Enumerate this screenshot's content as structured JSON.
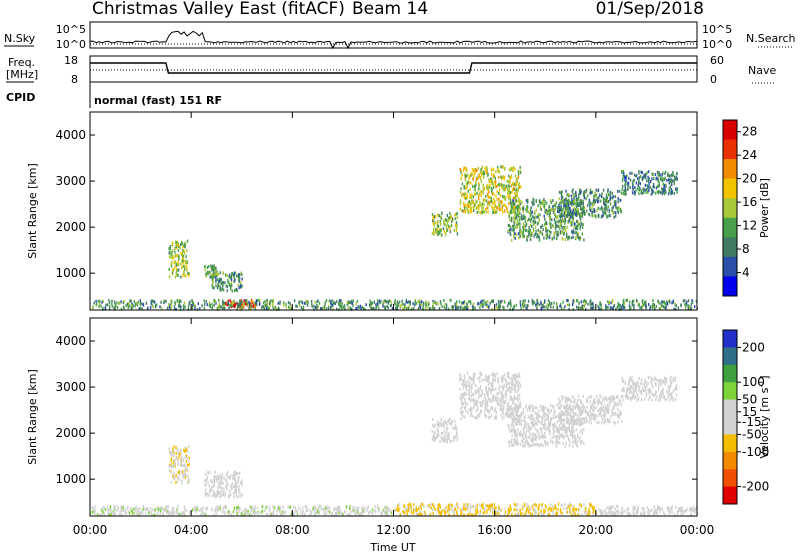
{
  "header": {
    "title": "Christmas Valley East (fitACF)",
    "beam": "Beam 14",
    "date": "01/Sep/2018"
  },
  "strip": {
    "nsky_label": "N.Sky",
    "nsearch_label": "N.Search",
    "freq_label": "Freq.",
    "freq_unit": "[MHz]",
    "nave_label": "Nave",
    "cpid_label": "CPID",
    "cpid_text": "normal (fast) 151 RF",
    "noise_ticks": [
      "10^5",
      "10^0"
    ],
    "noise_ticks_right": [
      "10^5",
      "10^0"
    ],
    "freq_ticks": [
      "18",
      "8"
    ],
    "nave_ticks": [
      "60",
      "0"
    ]
  },
  "colors": {
    "power_scale": [
      "#0000ee",
      "#2a4fa8",
      "#3f7c63",
      "#4aa04a",
      "#a8c83c",
      "#f2c400",
      "#f08c00",
      "#e83000",
      "#d80000"
    ],
    "velocity_scale": [
      "#e00000",
      "#f25000",
      "#f28a00",
      "#f4be00",
      "#d2d2d2",
      "#d2d2d2",
      "#7ed23a",
      "#3fa03f",
      "#2f6f8a",
      "#2030c8"
    ],
    "trace": "#000000",
    "frame": "#000000"
  },
  "chart_data": [
    {
      "type": "heatmap",
      "name": "power",
      "ylabel": "Slant Range [km]",
      "xlabel": "",
      "xlim": [
        "00:00",
        "24:00"
      ],
      "ylim": [
        200,
        4500
      ],
      "x_ticks": [
        "00:00",
        "04:00",
        "08:00",
        "12:00",
        "16:00",
        "20:00",
        "00:00"
      ],
      "y_ticks": [
        1000,
        2000,
        3000,
        4000
      ],
      "colorbar": {
        "label": "Power [dB]",
        "ticks": [
          4,
          8,
          12,
          16,
          20,
          24,
          28
        ],
        "range": [
          0,
          30
        ]
      },
      "regions": [
        {
          "t": [
            3.1,
            3.9
          ],
          "r": [
            900,
            1700
          ],
          "level": 14
        },
        {
          "t": [
            4.5,
            5.0
          ],
          "r": [
            900,
            1150
          ],
          "level": 12
        },
        {
          "t": [
            4.8,
            6.0
          ],
          "r": [
            600,
            1000
          ],
          "level": 10
        },
        {
          "t": [
            5.3,
            6.6
          ],
          "r": [
            250,
            400
          ],
          "level": 27
        },
        {
          "t": [
            13.5,
            14.5
          ],
          "r": [
            1800,
            2300
          ],
          "level": 14
        },
        {
          "t": [
            14.6,
            17.0
          ],
          "r": [
            2300,
            3300
          ],
          "level": 16
        },
        {
          "t": [
            16.5,
            19.5
          ],
          "r": [
            1700,
            2600
          ],
          "level": 11
        },
        {
          "t": [
            18.5,
            21.0
          ],
          "r": [
            2200,
            2800
          ],
          "level": 9
        },
        {
          "t": [
            21.0,
            23.2
          ],
          "r": [
            2700,
            3200
          ],
          "level": 8
        },
        {
          "t": [
            0.0,
            24.0
          ],
          "r": [
            200,
            400
          ],
          "level": 10
        }
      ]
    },
    {
      "type": "heatmap",
      "name": "velocity",
      "ylabel": "Slant Range [km]",
      "xlabel": "Time UT",
      "xlim": [
        "00:00",
        "24:00"
      ],
      "ylim": [
        200,
        4500
      ],
      "x_ticks": [
        "00:00",
        "04:00",
        "08:00",
        "12:00",
        "16:00",
        "20:00",
        "00:00"
      ],
      "y_ticks": [
        1000,
        2000,
        3000,
        4000
      ],
      "colorbar": {
        "label": "Velocity [m s^-1]",
        "ticks": [
          200,
          100,
          50,
          15,
          -15,
          -50,
          -100,
          -200
        ],
        "range": [
          -250,
          250
        ]
      },
      "regions": [
        {
          "t": [
            3.1,
            3.9
          ],
          "r": [
            900,
            1700
          ],
          "level": -40
        },
        {
          "t": [
            4.5,
            6.0
          ],
          "r": [
            600,
            1150
          ],
          "level": 0
        },
        {
          "t": [
            0.0,
            12.0
          ],
          "r": [
            200,
            400
          ],
          "level": 30
        },
        {
          "t": [
            12.0,
            20.0
          ],
          "r": [
            200,
            450
          ],
          "level": -60
        },
        {
          "t": [
            20.0,
            24.0
          ],
          "r": [
            200,
            400
          ],
          "level": 20
        },
        {
          "t": [
            13.5,
            14.5
          ],
          "r": [
            1800,
            2300
          ],
          "level": 0
        },
        {
          "t": [
            14.6,
            17.0
          ],
          "r": [
            2300,
            3300
          ],
          "level": 0
        },
        {
          "t": [
            16.5,
            19.5
          ],
          "r": [
            1700,
            2600
          ],
          "level": 0
        },
        {
          "t": [
            18.5,
            21.0
          ],
          "r": [
            2200,
            2800
          ],
          "level": 0
        },
        {
          "t": [
            21.0,
            23.2
          ],
          "r": [
            2700,
            3200
          ],
          "level": 0
        }
      ]
    }
  ]
}
